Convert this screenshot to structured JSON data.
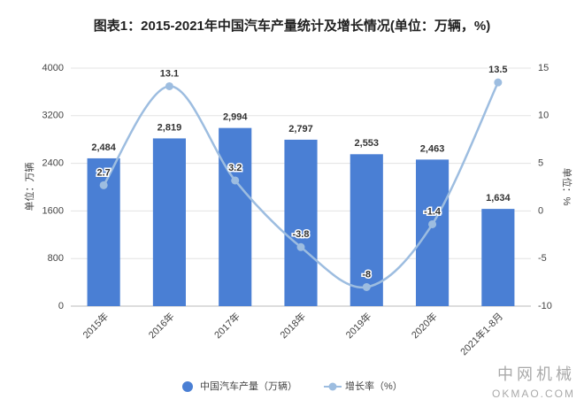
{
  "chart_data": {
    "type": "bar",
    "title": "图表1：2015-2021年中国汽车产量统计及增长情况(单位：万辆，%)",
    "y_label": "单位：万辆",
    "y2_label": "单位：%",
    "categories": [
      "2015年",
      "2016年",
      "2017年",
      "2018年",
      "2019年",
      "2020年",
      "2021年1-8月"
    ],
    "series": [
      {
        "name": "中国汽车产量（万辆）",
        "type": "bar",
        "color": "#4a7fd4",
        "values": [
          2484,
          2819,
          2994,
          2797,
          2553,
          2463,
          1634
        ],
        "value_labels": [
          "2,484",
          "2,819",
          "2,994",
          "2,797",
          "2,553",
          "2,463",
          "1,634"
        ]
      },
      {
        "name": "增长率（%）",
        "type": "line",
        "axis": "y2",
        "color": "#9dbde0",
        "values": [
          2.7,
          13.1,
          3.2,
          -3.8,
          -8,
          -1.4,
          13.5
        ]
      }
    ],
    "ylim": [
      0,
      4000
    ],
    "yticks": [
      0,
      800,
      1600,
      2400,
      3200,
      4000
    ],
    "y2lim": [
      -10,
      15
    ],
    "y2ticks": [
      -10,
      -5,
      0,
      5,
      10,
      15
    ],
    "grid": true,
    "legend": "bottom",
    "watermark": [
      "中网机械",
      "OKMAO.COM"
    ]
  }
}
